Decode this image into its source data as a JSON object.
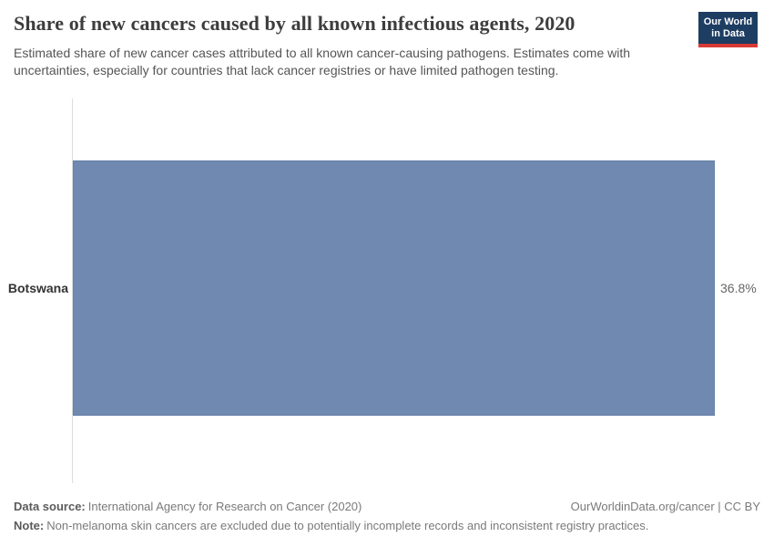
{
  "header": {
    "title": "Share of new cancers caused by all known infectious agents, 2020",
    "subtitle": "Estimated share of new cancer cases attributed to all known cancer-causing pathogens. Estimates come with uncertainties, especially for countries that lack cancer registries or have limited pathogen testing.",
    "logo": {
      "line1": "Our World",
      "line2": "in Data",
      "bg_color": "#1d3d63",
      "accent_color": "#d73a34"
    }
  },
  "chart_data": {
    "type": "bar",
    "orientation": "horizontal",
    "title": "Share of new cancers caused by all known infectious agents, 2020",
    "categories": [
      "Botswana"
    ],
    "values": [
      36.8
    ],
    "value_labels": [
      "36.8%"
    ],
    "xlabel": "",
    "ylabel": "",
    "xlim": [
      0,
      40
    ],
    "grid": false,
    "legend": "none",
    "bar_color": "#7089b1",
    "axis_line_color": "#dcdcdc"
  },
  "footer": {
    "data_source_label": "Data source:",
    "data_source_text": "International Agency for Research on Cancer (2020)",
    "rights": "OurWorldinData.org/cancer | CC BY",
    "note_label": "Note:",
    "note_text": "Non-melanoma skin cancers are excluded due to potentially incomplete records and inconsistent registry practices."
  }
}
